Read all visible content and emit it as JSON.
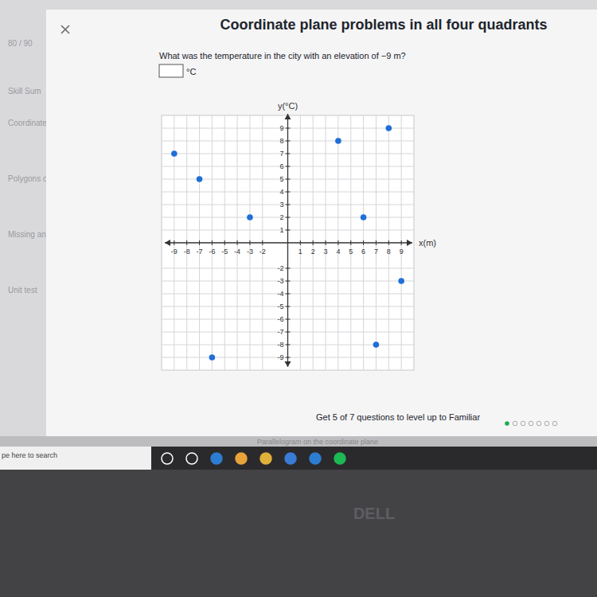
{
  "page": {
    "header": "Coordinate plane problems in all four quadrants",
    "question": "What was the temperature in the city with an elevation of −9 m?",
    "answer_unit": "°C",
    "progress": "Get 5 of 7 questions to level up to Familiar",
    "sidebar": [
      "80 / 90",
      "Skill Sum",
      "Coordinate",
      "Polygons o",
      "Missing an",
      "Unit test"
    ],
    "next": "Parallelogram on the coordinate plane",
    "taskbar_search": "pe here to search",
    "brand": "DELL"
  },
  "chart_data": {
    "type": "scatter",
    "x_label": "x(m)",
    "y_label": "y(°C)",
    "x": [
      -9,
      -7,
      -3,
      4,
      8,
      6,
      9,
      -6,
      7
    ],
    "values": [
      7,
      5,
      2,
      8,
      9,
      2,
      -3,
      -9,
      -8
    ],
    "color": "#1f6fd8",
    "marker": "circle",
    "xlim": [
      -10,
      10
    ],
    "ylim": [
      -10,
      10
    ],
    "xticks": [
      -9,
      -8,
      -7,
      -6,
      -5,
      -4,
      -3,
      -2,
      1,
      2,
      3,
      4,
      5,
      6,
      7,
      8,
      9
    ],
    "yticks": [
      -9,
      -8,
      -7,
      -6,
      -5,
      -4,
      -3,
      -2,
      1,
      2,
      3,
      4,
      5,
      6,
      7,
      8,
      9
    ],
    "grid": true
  }
}
